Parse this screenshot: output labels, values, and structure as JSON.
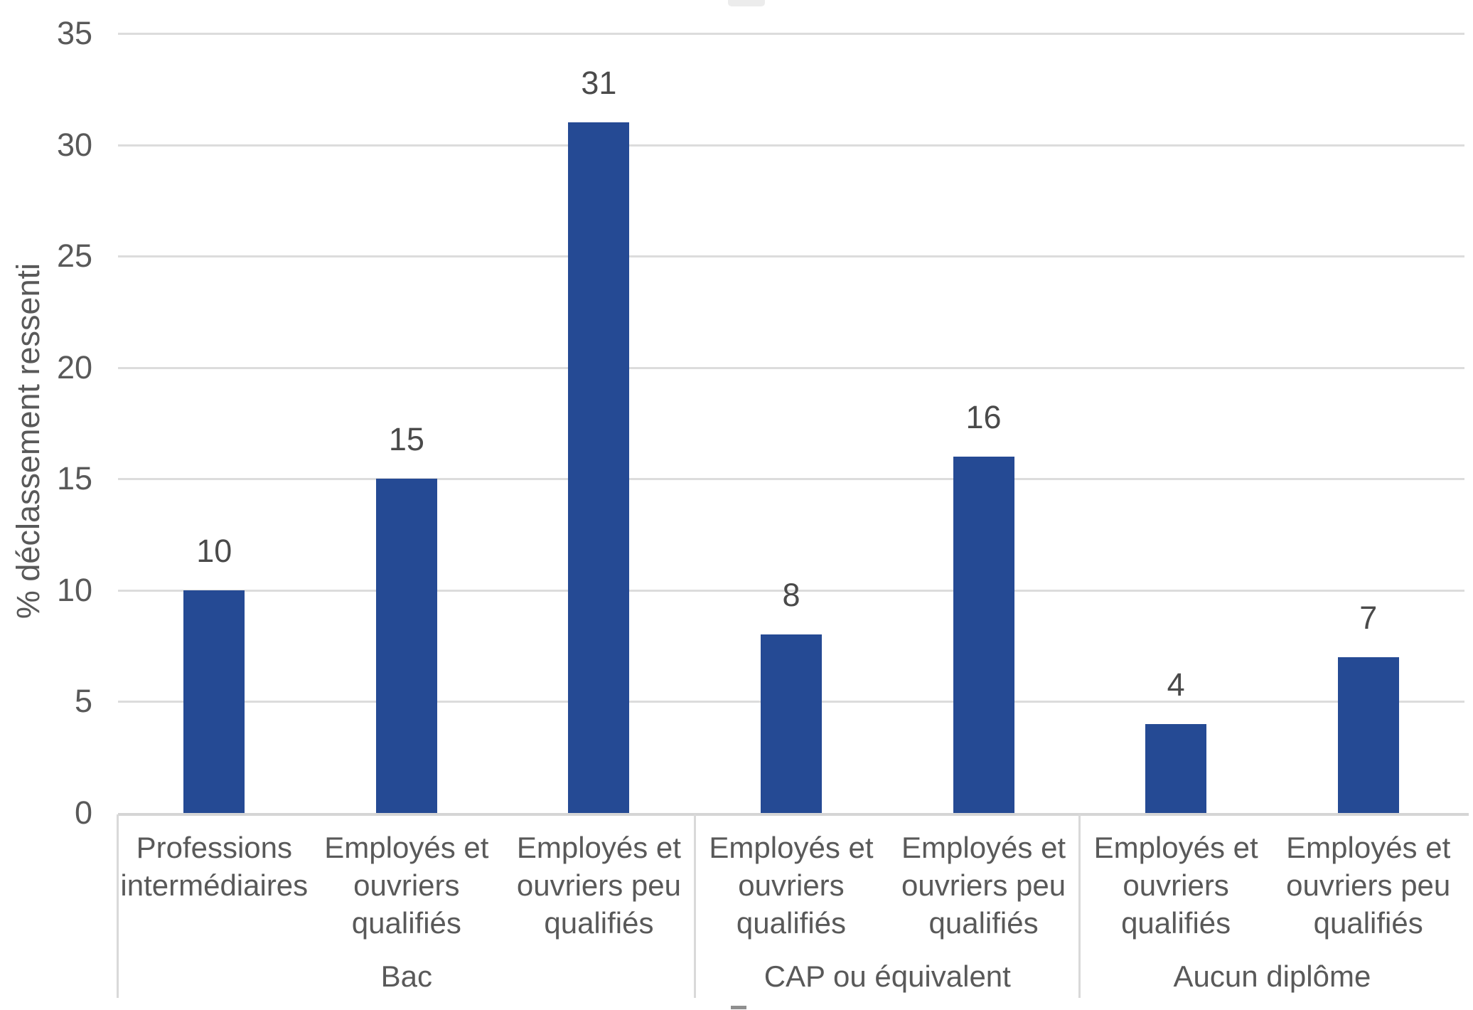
{
  "chart_data": {
    "type": "bar",
    "title": "",
    "ylabel": "% déclassement ressenti",
    "xlabel": "",
    "ylim": [
      0,
      35
    ],
    "yticks": [
      0,
      5,
      10,
      15,
      20,
      25,
      30,
      35
    ],
    "grid": true,
    "legend_position": "none",
    "value_labels": [
      "10",
      "15",
      "31",
      "8",
      "16",
      "4",
      "7"
    ],
    "groups": [
      {
        "label": "Bac",
        "bars": [
          {
            "category": "Professions intermédiaires",
            "value": 10
          },
          {
            "category": "Employés et ouvriers qualifiés",
            "value": 15
          },
          {
            "category": "Employés et ouvriers peu qualifiés",
            "value": 31
          }
        ]
      },
      {
        "label": "CAP ou équivalent",
        "bars": [
          {
            "category": "Employés et ouvriers qualifiés",
            "value": 8
          },
          {
            "category": "Employés et ouvriers peu qualifiés",
            "value": 16
          }
        ]
      },
      {
        "label": "Aucun diplôme",
        "bars": [
          {
            "category": "Employés et ouvriers qualifiés",
            "value": 4
          },
          {
            "category": "Employés et ouvriers peu qualifiés",
            "value": 7
          }
        ]
      }
    ],
    "colors": {
      "bar": "#254A94",
      "gridline": "#DCDCDC",
      "axis_line": "#D5D5D5",
      "divider": "#D9D9D9",
      "tick_text": "#595959",
      "value_text": "#4A4A4A",
      "category_text": "#595959",
      "background": "#FFFFFF"
    }
  }
}
